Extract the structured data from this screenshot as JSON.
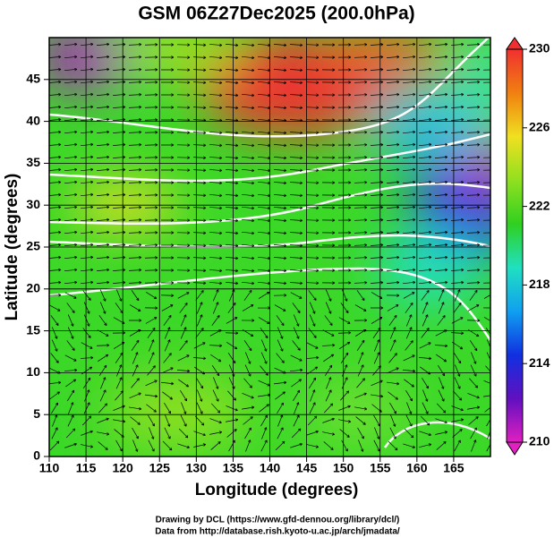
{
  "title": "GSM 06Z27Dec2025 (200.0hPa)",
  "xlabel": "Longitude (degrees)",
  "ylabel": "Latitude  (degrees)",
  "xlim": [
    110,
    170
  ],
  "xticks": [
    110,
    115,
    120,
    125,
    130,
    135,
    140,
    145,
    150,
    155,
    160,
    165
  ],
  "ylim": [
    0,
    50
  ],
  "yticks": [
    0,
    5,
    10,
    15,
    20,
    25,
    30,
    35,
    40,
    45
  ],
  "colorbar": {
    "lim": [
      210,
      230
    ],
    "ticks": [
      210,
      214,
      218,
      222,
      226,
      230
    ],
    "colors": [
      "#e020c0",
      "#6010c0",
      "#1030e0",
      "#10a0f0",
      "#20e0c0",
      "#30d020",
      "#90e020",
      "#f0e020",
      "#f08010",
      "#f03030"
    ]
  },
  "credits": [
    "Drawing by DCL (https://www.gfd-dennou.org/library/dcl/)",
    "Data from http://database.rish.kyoto-u.ac.jp/arch/jmadata/"
  ]
}
